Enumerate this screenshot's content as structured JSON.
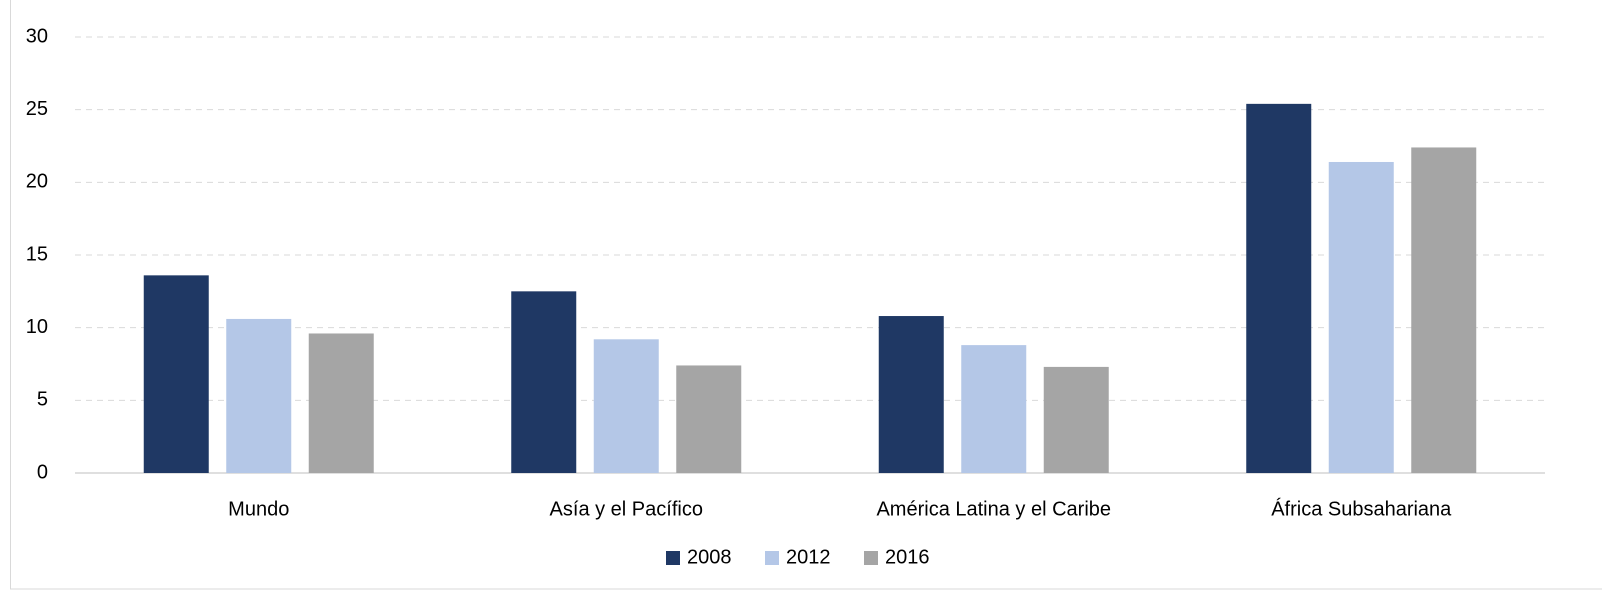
{
  "chart_data": {
    "type": "bar",
    "categories": [
      "Mundo",
      "Asía y el Pacífico",
      "América Latina y el Caribe",
      "África Subsahariana"
    ],
    "series": [
      {
        "name": "2008",
        "color": "#1f3864",
        "values": [
          13.6,
          12.5,
          10.8,
          25.4
        ]
      },
      {
        "name": "2012",
        "color": "#b4c7e7",
        "values": [
          10.6,
          9.2,
          8.8,
          21.4
        ]
      },
      {
        "name": "2016",
        "color": "#a5a5a5",
        "values": [
          9.6,
          7.4,
          7.3,
          22.4
        ]
      }
    ],
    "ylim": [
      0,
      30
    ],
    "yticks": [
      0,
      5,
      10,
      15,
      20,
      25,
      30
    ],
    "grid": true,
    "legend": "bottom"
  }
}
